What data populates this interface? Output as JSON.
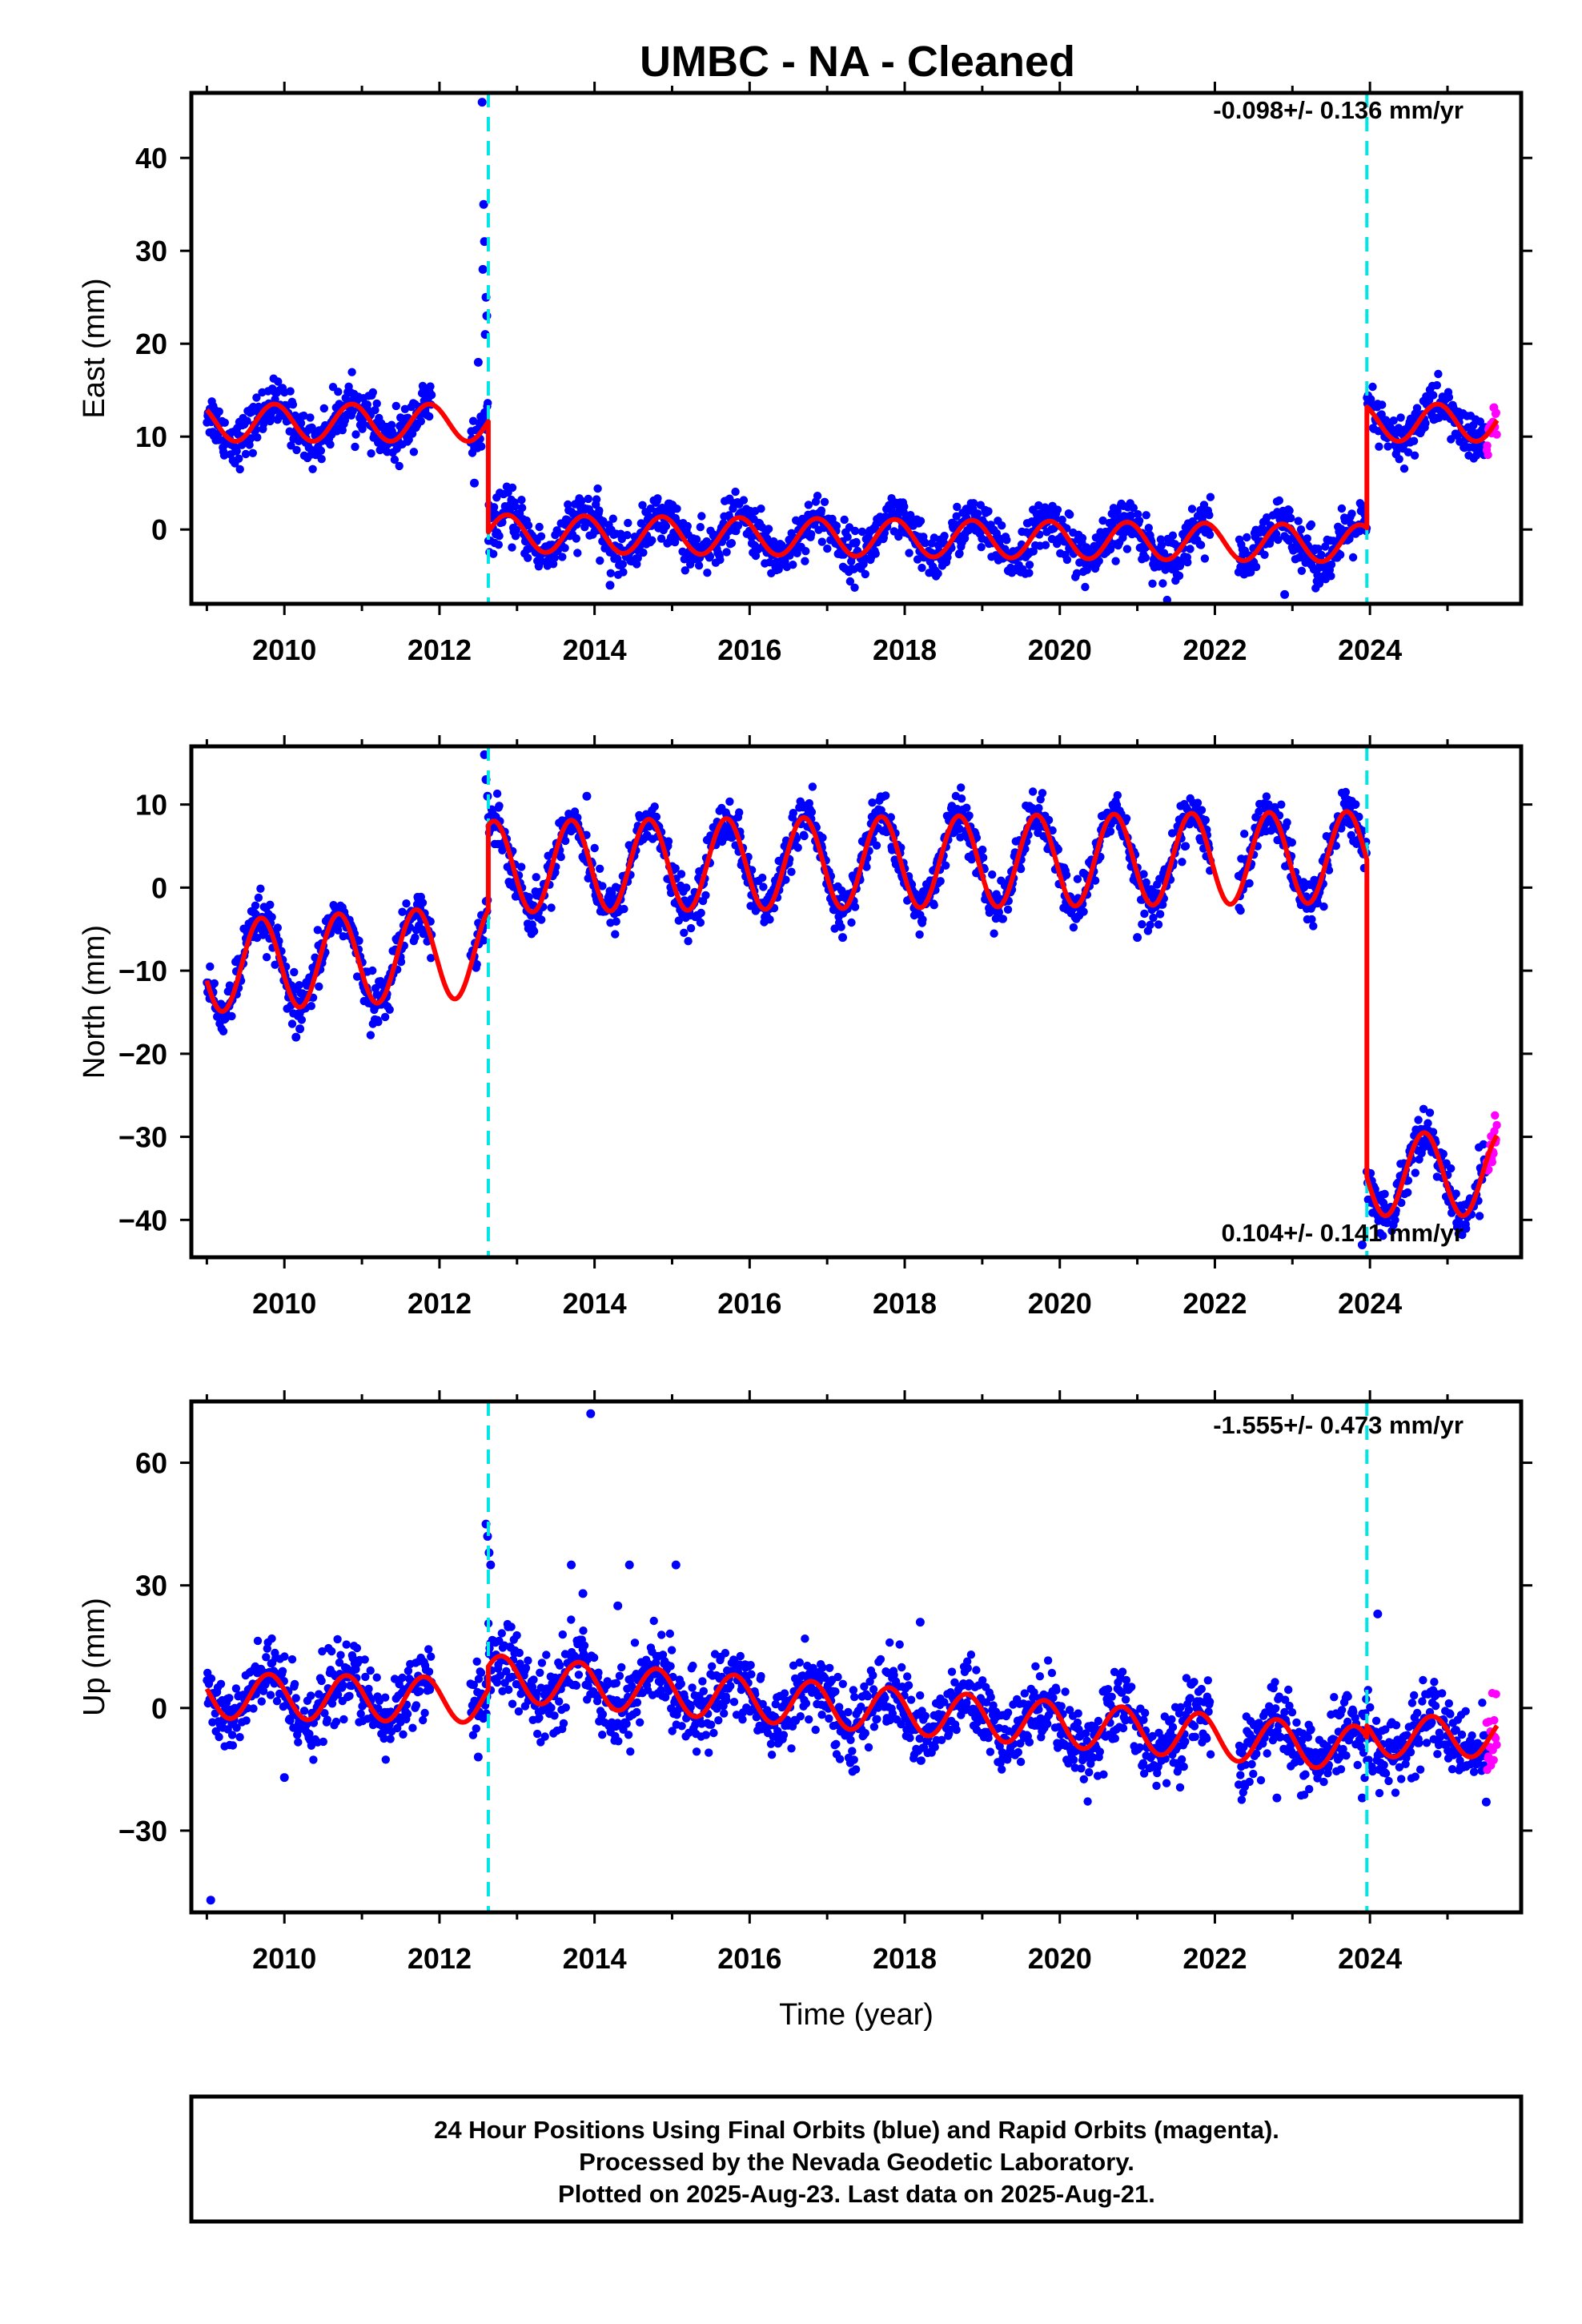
{
  "figure": {
    "title": "UMBC  - NA - Cleaned",
    "footer": [
      "24 Hour Positions Using Final Orbits (blue) and Rapid Orbits (magenta).",
      "Processed by the Nevada Geodetic Laboratory.",
      "Plotted on 2025-Aug-23. Last data on 2025-Aug-21."
    ]
  },
  "colors": {
    "final_orbits": "#0000ff",
    "rapid_orbits": "#ff00ff",
    "model_fit": "#ff0000",
    "steps": "#00e5e5",
    "axes": "#000000"
  },
  "chart_data": [
    {
      "type": "scatter",
      "component": "east",
      "ylabel": "East (mm)",
      "xlabel": "",
      "rate_label": "-0.098+/- 0.136 mm/yr",
      "xlim": [
        2008.8,
        2025.95
      ],
      "ylim": [
        -8,
        47
      ],
      "x_ticks": [
        2010,
        2012,
        2014,
        2016,
        2018,
        2020,
        2022,
        2024
      ],
      "y_ticks": [
        0,
        10,
        20,
        30,
        40
      ],
      "grid": false,
      "step_epochs": [
        2012.63,
        2023.96
      ],
      "segments": [
        {
          "start": 2009.0,
          "end": 2012.63,
          "offset": 11.5,
          "amplitude": 2.0,
          "trend": 0,
          "phase": 0.62
        },
        {
          "start": 2012.63,
          "end": 2023.96,
          "offset": -0.4,
          "amplitude": 2.0,
          "trend": -0.098,
          "phase": 0.62
        },
        {
          "start": 2023.96,
          "end": 2025.64,
          "offset": 11.5,
          "amplitude": 2.0,
          "trend": 0,
          "phase": 0.62
        }
      ],
      "scatter_sd": 1.3,
      "rapid_start": 2025.5,
      "outliers": [
        {
          "x": 2012.55,
          "y": 46
        },
        {
          "x": 2012.57,
          "y": 35
        },
        {
          "x": 2012.58,
          "y": 31
        },
        {
          "x": 2012.56,
          "y": 28
        },
        {
          "x": 2012.6,
          "y": 25
        },
        {
          "x": 2012.61,
          "y": 23
        },
        {
          "x": 2012.59,
          "y": 21
        },
        {
          "x": 2012.5,
          "y": 18
        },
        {
          "x": 2012.45,
          "y": 5
        },
        {
          "x": 2014.2,
          "y": -6
        },
        {
          "x": 2022.9,
          "y": -7
        }
      ]
    },
    {
      "type": "scatter",
      "component": "north",
      "ylabel": "North (mm)",
      "xlabel": "",
      "rate_label": "0.104+/- 0.141 mm/yr",
      "xlim": [
        2008.8,
        2025.95
      ],
      "ylim": [
        -44.5,
        17
      ],
      "x_ticks": [
        2010,
        2012,
        2014,
        2016,
        2018,
        2020,
        2022,
        2024
      ],
      "y_ticks": [
        -40,
        -30,
        -20,
        -10,
        0,
        10
      ],
      "grid": false,
      "step_epochs": [
        2012.63,
        2023.96
      ],
      "segments": [
        {
          "start": 2009.0,
          "end": 2012.63,
          "offset": -9.5,
          "amplitude": 5.5,
          "trend": 0.5,
          "phase": 0.45
        },
        {
          "start": 2012.63,
          "end": 2023.96,
          "offset": 2.5,
          "amplitude": 5.5,
          "trend": 0.104,
          "phase": 0.45
        },
        {
          "start": 2023.96,
          "end": 2025.64,
          "offset": -34.5,
          "amplitude": 5.0,
          "trend": 0,
          "phase": 0.45
        }
      ],
      "scatter_sd": 1.4,
      "rapid_start": 2025.5,
      "outliers": [
        {
          "x": 2012.58,
          "y": 16
        },
        {
          "x": 2012.6,
          "y": 13
        },
        {
          "x": 2012.62,
          "y": 11
        },
        {
          "x": 2010.15,
          "y": -18
        },
        {
          "x": 2010.2,
          "y": -17
        },
        {
          "x": 2017.2,
          "y": -6
        },
        {
          "x": 2021.0,
          "y": -6
        },
        {
          "x": 2013.9,
          "y": 11
        },
        {
          "x": 2023.9,
          "y": -43
        }
      ]
    },
    {
      "type": "scatter",
      "component": "up",
      "ylabel": "Up (mm)",
      "xlabel": "Time (year)",
      "rate_label": "-1.555+/- 0.473 mm/yr",
      "xlim": [
        2008.8,
        2025.95
      ],
      "ylim": [
        -50,
        75
      ],
      "x_ticks": [
        2010,
        2012,
        2014,
        2016,
        2018,
        2020,
        2022,
        2024
      ],
      "y_ticks": [
        -30,
        0,
        30,
        60
      ],
      "grid": false,
      "step_epochs": [
        2012.63,
        2023.96
      ],
      "segments": [
        {
          "start": 2009.0,
          "end": 2012.63,
          "offset": 3.0,
          "amplitude": 5.5,
          "trend": -0.3,
          "phase": 0.55
        },
        {
          "start": 2012.63,
          "end": 2023.96,
          "offset": 7.5,
          "amplitude": 5.5,
          "trend": -1.555,
          "phase": 0.55
        },
        {
          "start": 2023.96,
          "end": 2025.64,
          "offset": -7.0,
          "amplitude": 5.0,
          "trend": 0,
          "phase": 0.55
        }
      ],
      "scatter_sd": 4.5,
      "rapid_start": 2025.5,
      "outliers": [
        {
          "x": 2013.95,
          "y": 72
        },
        {
          "x": 2009.05,
          "y": -47
        },
        {
          "x": 2012.6,
          "y": 45
        },
        {
          "x": 2012.62,
          "y": 42
        },
        {
          "x": 2012.64,
          "y": 38
        },
        {
          "x": 2012.66,
          "y": 35
        },
        {
          "x": 2013.7,
          "y": 35
        },
        {
          "x": 2014.45,
          "y": 35
        },
        {
          "x": 2015.05,
          "y": 35
        },
        {
          "x": 2013.85,
          "y": 28
        },
        {
          "x": 2014.3,
          "y": 25
        },
        {
          "x": 2024.1,
          "y": 23
        },
        {
          "x": 2018.2,
          "y": 21
        },
        {
          "x": 2012.5,
          "y": -12
        },
        {
          "x": 2022.8,
          "y": -22
        },
        {
          "x": 2010.0,
          "y": -17
        },
        {
          "x": 2023.9,
          "y": -22
        },
        {
          "x": 2025.5,
          "y": -23
        }
      ]
    }
  ]
}
